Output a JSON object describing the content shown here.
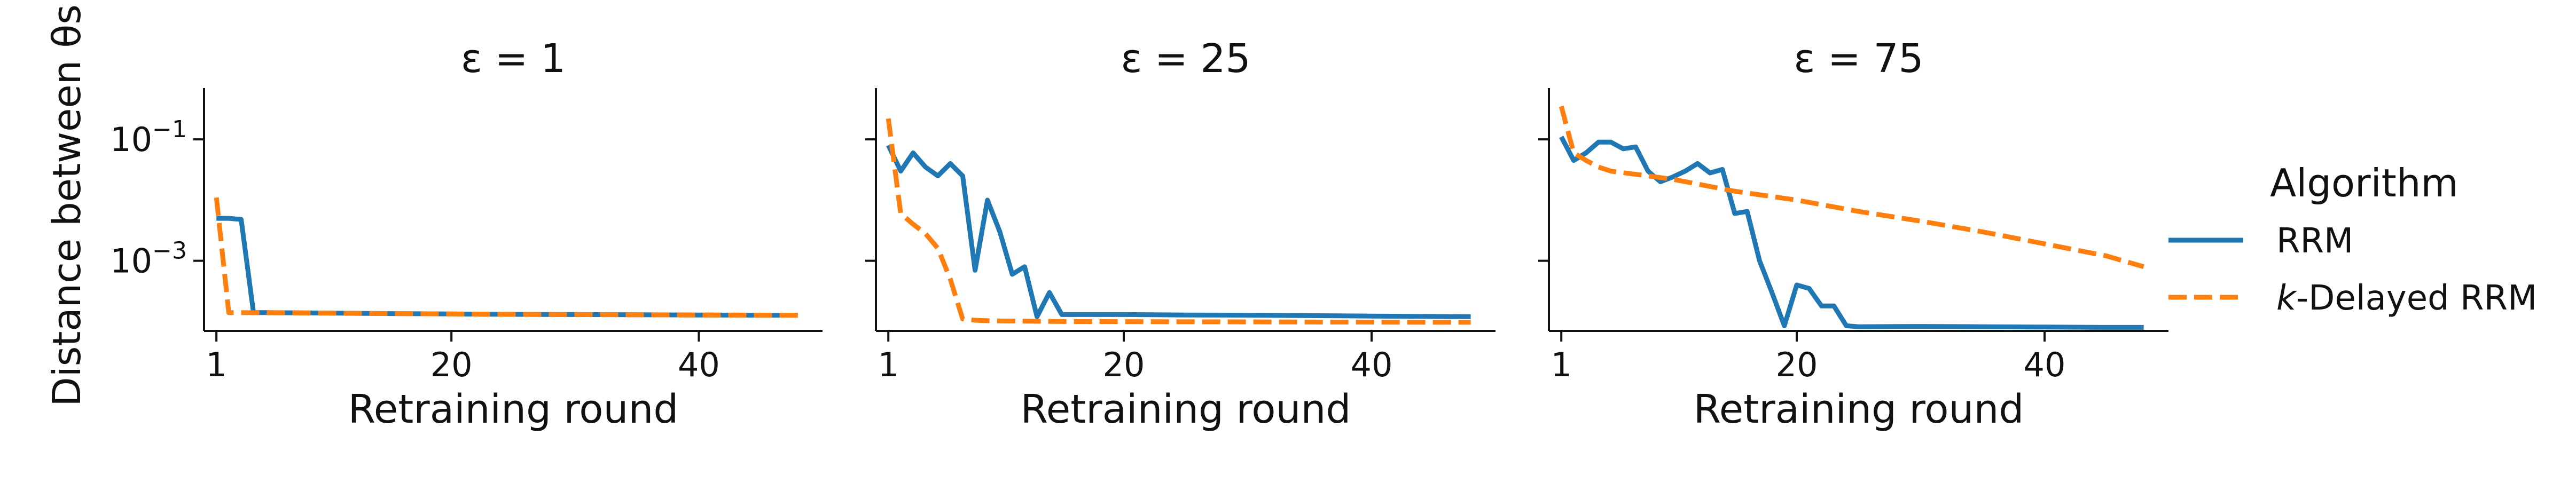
{
  "figure": {
    "ylabel": "Distance between θs",
    "legend": {
      "title": "Algorithm",
      "entries": [
        {
          "label": "RRM",
          "color": "#1f77b4",
          "dash": false
        },
        {
          "label": "-Delayed RRM",
          "label_prefix": "k",
          "color": "#ff7f0e",
          "dash": true
        }
      ]
    }
  },
  "chart_data": [
    {
      "type": "line",
      "title": "ε = 1",
      "xlabel": "Retraining round",
      "xticks": [
        1,
        20,
        40
      ],
      "xlim": [
        0,
        50
      ],
      "yscale": "log",
      "ylim": [
        7e-05,
        0.7
      ],
      "yticks": [
        0.1,
        0.001
      ],
      "ytick_labels": [
        "10^-1",
        "10^-3"
      ],
      "series": [
        {
          "name": "RRM",
          "color": "#1f77b4",
          "dash": false,
          "x": [
            1,
            2,
            3,
            4,
            5,
            10,
            15,
            20,
            25,
            30,
            35,
            40,
            45,
            48
          ],
          "y": [
            0.005,
            0.005,
            0.0048,
            0.00014,
            0.00014,
            0.000138,
            0.000135,
            0.000133,
            0.000131,
            0.00013,
            0.000129,
            0.000128,
            0.000127,
            0.000127
          ]
        },
        {
          "name": "k-Delayed RRM",
          "color": "#ff7f0e",
          "dash": true,
          "x": [
            1,
            2,
            3,
            10,
            20,
            30,
            40,
            48
          ],
          "y": [
            0.011,
            0.00014,
            0.00014,
            0.000137,
            0.000133,
            0.00013,
            0.000128,
            0.000127
          ]
        }
      ]
    },
    {
      "type": "line",
      "title": "ε = 25",
      "xlabel": "Retraining round",
      "xticks": [
        1,
        20,
        40
      ],
      "xlim": [
        0,
        50
      ],
      "yscale": "log",
      "ylim": [
        7e-05,
        0.7
      ],
      "yticks": [
        0.1,
        0.001
      ],
      "ytick_labels": [
        "",
        ""
      ],
      "series": [
        {
          "name": "RRM",
          "color": "#1f77b4",
          "dash": false,
          "x": [
            1,
            2,
            3,
            4,
            5,
            6,
            7,
            8,
            9,
            10,
            11,
            12,
            13,
            14,
            15,
            16,
            17,
            18,
            20,
            25,
            30,
            35,
            40,
            45,
            48
          ],
          "y": [
            0.08,
            0.03,
            0.06,
            0.035,
            0.025,
            0.04,
            0.025,
            0.0007,
            0.01,
            0.003,
            0.0006,
            0.0008,
            0.00012,
            0.0003,
            0.00013,
            0.00013,
            0.00013,
            0.00013,
            0.00013,
            0.000128,
            0.000127,
            0.000125,
            0.000123,
            0.000121,
            0.00012
          ]
        },
        {
          "name": "k-Delayed RRM",
          "color": "#ff7f0e",
          "dash": true,
          "x": [
            1,
            2,
            3,
            4,
            5,
            6,
            7,
            8,
            9,
            10,
            15,
            20,
            25,
            30,
            35,
            40,
            45,
            48
          ],
          "y": [
            0.22,
            0.006,
            0.004,
            0.0028,
            0.0016,
            0.0005,
            0.00011,
            0.000105,
            0.000103,
            0.000102,
            0.0001,
            9.95e-05,
            9.9e-05,
            9.85e-05,
            9.8e-05,
            9.75e-05,
            9.7e-05,
            9.7e-05
          ]
        }
      ]
    },
    {
      "type": "line",
      "title": "ε = 75",
      "xlabel": "Retraining round",
      "xticks": [
        1,
        20,
        40
      ],
      "xlim": [
        0,
        50
      ],
      "yscale": "log",
      "ylim": [
        7e-05,
        0.7
      ],
      "yticks": [
        0.1,
        0.001
      ],
      "ytick_labels": [
        "",
        ""
      ],
      "series": [
        {
          "name": "RRM",
          "color": "#1f77b4",
          "dash": false,
          "x": [
            1,
            2,
            3,
            4,
            5,
            6,
            7,
            8,
            9,
            10,
            11,
            12,
            13,
            14,
            15,
            16,
            17,
            18,
            19,
            20,
            21,
            22,
            23,
            24,
            25,
            30,
            35,
            40,
            45,
            48
          ],
          "y": [
            0.11,
            0.045,
            0.06,
            0.09,
            0.09,
            0.07,
            0.075,
            0.03,
            0.02,
            0.024,
            0.03,
            0.04,
            0.028,
            0.032,
            0.006,
            0.0065,
            0.001,
            0.0003,
            8.5e-05,
            0.0004,
            0.00035,
            0.00018,
            0.00018,
            8.5e-05,
            8.2e-05,
            8.3e-05,
            8.2e-05,
            8.1e-05,
            8e-05,
            8e-05
          ]
        },
        {
          "name": "k-Delayed RRM",
          "color": "#ff7f0e",
          "dash": true,
          "x": [
            1,
            2,
            3,
            4,
            5,
            8,
            10,
            15,
            20,
            25,
            30,
            35,
            40,
            45,
            48
          ],
          "y": [
            0.35,
            0.06,
            0.045,
            0.035,
            0.03,
            0.025,
            0.022,
            0.014,
            0.01,
            0.0065,
            0.0045,
            0.003,
            0.0019,
            0.0012,
            0.0008
          ]
        }
      ]
    }
  ]
}
